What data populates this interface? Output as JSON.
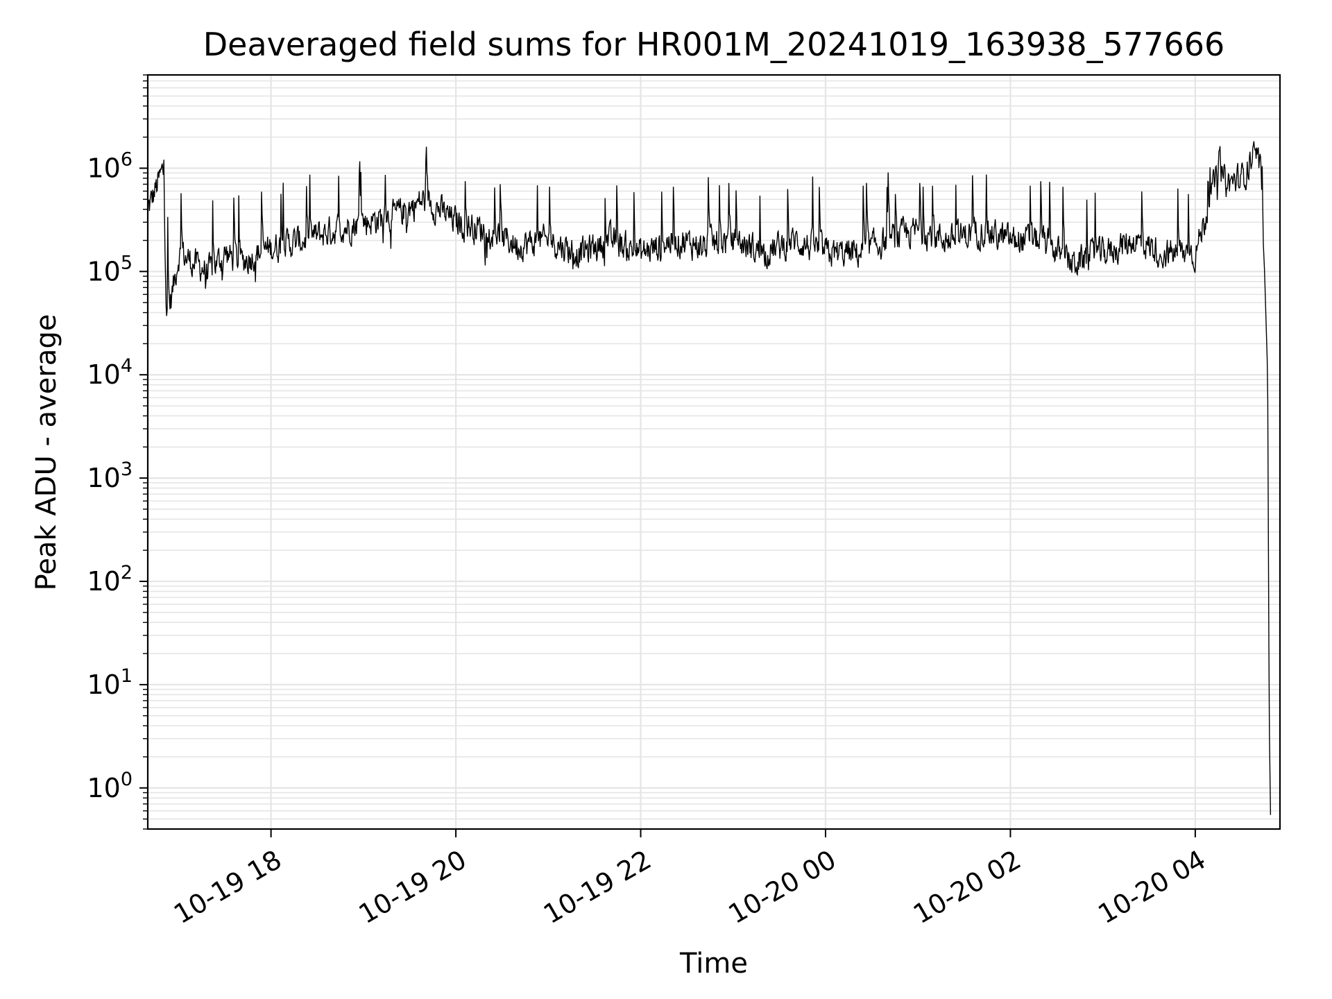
{
  "chart_data": {
    "type": "line",
    "title": "Deaveraged field sums for HR001M_20241019_163938_577666",
    "xlabel": "Time",
    "ylabel": "Peak ADU - average",
    "y_scale": "log",
    "ylim": [
      0.4,
      8000000
    ],
    "xlim": [
      "10-19 16:40",
      "10-20 04:55"
    ],
    "grid": true,
    "minor_grid": true,
    "legend": "none",
    "line_color": "#000000",
    "grid_color": "#e5e5e5",
    "x_ticks": [
      {
        "label": "10-19 18",
        "time": "10-19 18:00"
      },
      {
        "label": "10-19 20",
        "time": "10-19 20:00"
      },
      {
        "label": "10-19 22",
        "time": "10-19 22:00"
      },
      {
        "label": "10-20 00",
        "time": "10-20 00:00"
      },
      {
        "label": "10-20 02",
        "time": "10-20 02:00"
      },
      {
        "label": "10-20 04",
        "time": "10-20 04:00"
      }
    ],
    "y_ticks": [
      {
        "base": "10",
        "exp": "0",
        "value": 1
      },
      {
        "base": "10",
        "exp": "1",
        "value": 10
      },
      {
        "base": "10",
        "exp": "2",
        "value": 100
      },
      {
        "base": "10",
        "exp": "3",
        "value": 1000
      },
      {
        "base": "10",
        "exp": "4",
        "value": 10000
      },
      {
        "base": "10",
        "exp": "5",
        "value": 100000
      },
      {
        "base": "10",
        "exp": "6",
        "value": 1000000
      }
    ],
    "series": [
      {
        "x": [
          "10-19 16:40",
          "10-19 16:50",
          "10-19 16:52",
          "10-19 17:00",
          "10-19 17:10",
          "10-19 17:20",
          "10-19 17:30",
          "10-19 17:40",
          "10-19 17:50",
          "10-19 18:00",
          "10-19 18:20",
          "10-19 18:40",
          "10-19 19:00",
          "10-19 19:20",
          "10-19 19:40",
          "10-19 20:00",
          "10-19 20:20",
          "10-19 20:40",
          "10-19 21:00",
          "10-19 21:20",
          "10-19 21:40",
          "10-19 22:00",
          "10-19 22:20",
          "10-19 22:40",
          "10-19 23:00",
          "10-19 23:20",
          "10-19 23:40",
          "10-20 00:00",
          "10-20 00:20",
          "10-20 00:40",
          "10-20 01:00",
          "10-20 01:20",
          "10-20 01:40",
          "10-20 02:00",
          "10-20 02:20",
          "10-20 02:40",
          "10-20 03:00",
          "10-20 03:20",
          "10-20 03:40",
          "10-20 04:00",
          "10-20 04:15",
          "10-20 04:20",
          "10-20 04:30",
          "10-20 04:38",
          "10-20 04:42",
          "10-20 04:45",
          "10-20 04:47",
          "10-20 04:48",
          "10-20 04:49"
        ],
        "values": [
          400000,
          1000000,
          30000,
          150000,
          120000,
          100000,
          150000,
          120000,
          150000,
          170000,
          200000,
          250000,
          300000,
          350000,
          500000,
          300000,
          250000,
          180000,
          200000,
          150000,
          200000,
          150000,
          200000,
          180000,
          200000,
          150000,
          200000,
          150000,
          150000,
          200000,
          250000,
          200000,
          250000,
          200000,
          200000,
          120000,
          150000,
          200000,
          150000,
          150000,
          1000000,
          700000,
          800000,
          1300000,
          1000000,
          100000,
          10000,
          5,
          0.4
        ]
      }
    ]
  }
}
